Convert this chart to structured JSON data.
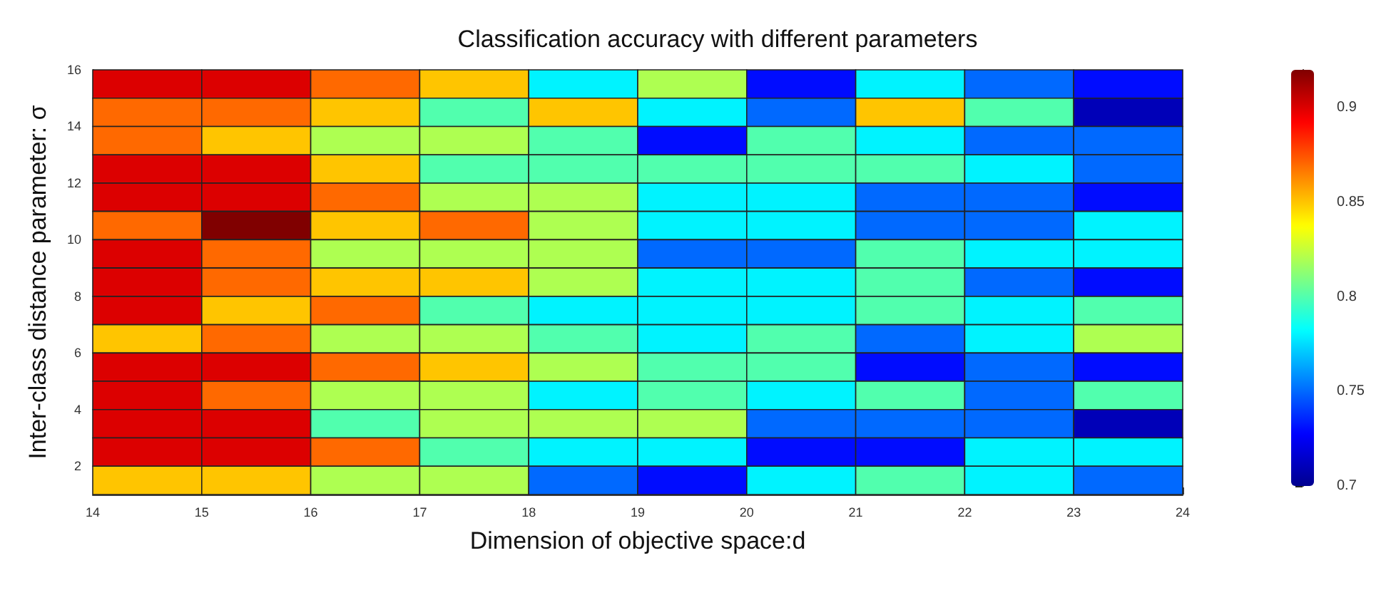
{
  "chart_data": {
    "type": "heatmap",
    "title": "Classification accuracy with different parameters",
    "xlabel": "Dimension of objective space:d",
    "ylabel": "Inter-class distance parameter: σ",
    "x": [
      14.5,
      15.5,
      16.5,
      17.5,
      18.5,
      19.5,
      20.5,
      21.5,
      22.5,
      23.5
    ],
    "y": [
      15.5,
      14.5,
      13.5,
      12.5,
      11.5,
      10.5,
      9.5,
      8.5,
      7.5,
      6.5,
      5.5,
      4.5,
      3.5,
      2.5,
      1.5
    ],
    "xlim": [
      14,
      24
    ],
    "xticks": [
      14,
      15,
      16,
      17,
      18,
      19,
      20,
      21,
      22,
      23,
      24
    ],
    "ylim": [
      1,
      16
    ],
    "yticks": [
      2,
      4,
      6,
      8,
      10,
      12,
      14,
      16
    ],
    "clim": [
      0.7,
      0.92
    ],
    "cticks": [
      0.7,
      0.75,
      0.8,
      0.85,
      0.9
    ],
    "cells": [
      [
        0.9,
        0.9,
        0.87,
        0.85,
        0.78,
        0.82,
        0.73,
        0.78,
        0.75,
        0.73
      ],
      [
        0.87,
        0.87,
        0.85,
        0.8,
        0.85,
        0.78,
        0.75,
        0.85,
        0.8,
        0.71
      ],
      [
        0.87,
        0.85,
        0.82,
        0.82,
        0.8,
        0.73,
        0.8,
        0.78,
        0.75,
        0.75
      ],
      [
        0.9,
        0.9,
        0.85,
        0.8,
        0.8,
        0.8,
        0.8,
        0.8,
        0.78,
        0.75
      ],
      [
        0.9,
        0.9,
        0.87,
        0.82,
        0.82,
        0.78,
        0.78,
        0.75,
        0.75,
        0.73
      ],
      [
        0.87,
        0.92,
        0.85,
        0.87,
        0.82,
        0.78,
        0.78,
        0.75,
        0.75,
        0.78
      ],
      [
        0.9,
        0.87,
        0.82,
        0.82,
        0.82,
        0.75,
        0.75,
        0.8,
        0.78,
        0.78
      ],
      [
        0.9,
        0.87,
        0.85,
        0.85,
        0.82,
        0.78,
        0.78,
        0.8,
        0.75,
        0.73
      ],
      [
        0.9,
        0.85,
        0.87,
        0.8,
        0.78,
        0.78,
        0.78,
        0.8,
        0.78,
        0.8
      ],
      [
        0.85,
        0.87,
        0.82,
        0.82,
        0.8,
        0.78,
        0.8,
        0.75,
        0.78,
        0.82
      ],
      [
        0.9,
        0.9,
        0.87,
        0.85,
        0.82,
        0.8,
        0.8,
        0.73,
        0.75,
        0.73
      ],
      [
        0.9,
        0.87,
        0.82,
        0.82,
        0.78,
        0.8,
        0.78,
        0.8,
        0.75,
        0.8
      ],
      [
        0.9,
        0.9,
        0.8,
        0.82,
        0.82,
        0.82,
        0.75,
        0.75,
        0.75,
        0.71
      ],
      [
        0.9,
        0.9,
        0.87,
        0.8,
        0.78,
        0.78,
        0.73,
        0.73,
        0.78,
        0.78
      ],
      [
        0.85,
        0.85,
        0.82,
        0.82,
        0.75,
        0.73,
        0.78,
        0.8,
        0.78,
        0.75
      ]
    ]
  }
}
